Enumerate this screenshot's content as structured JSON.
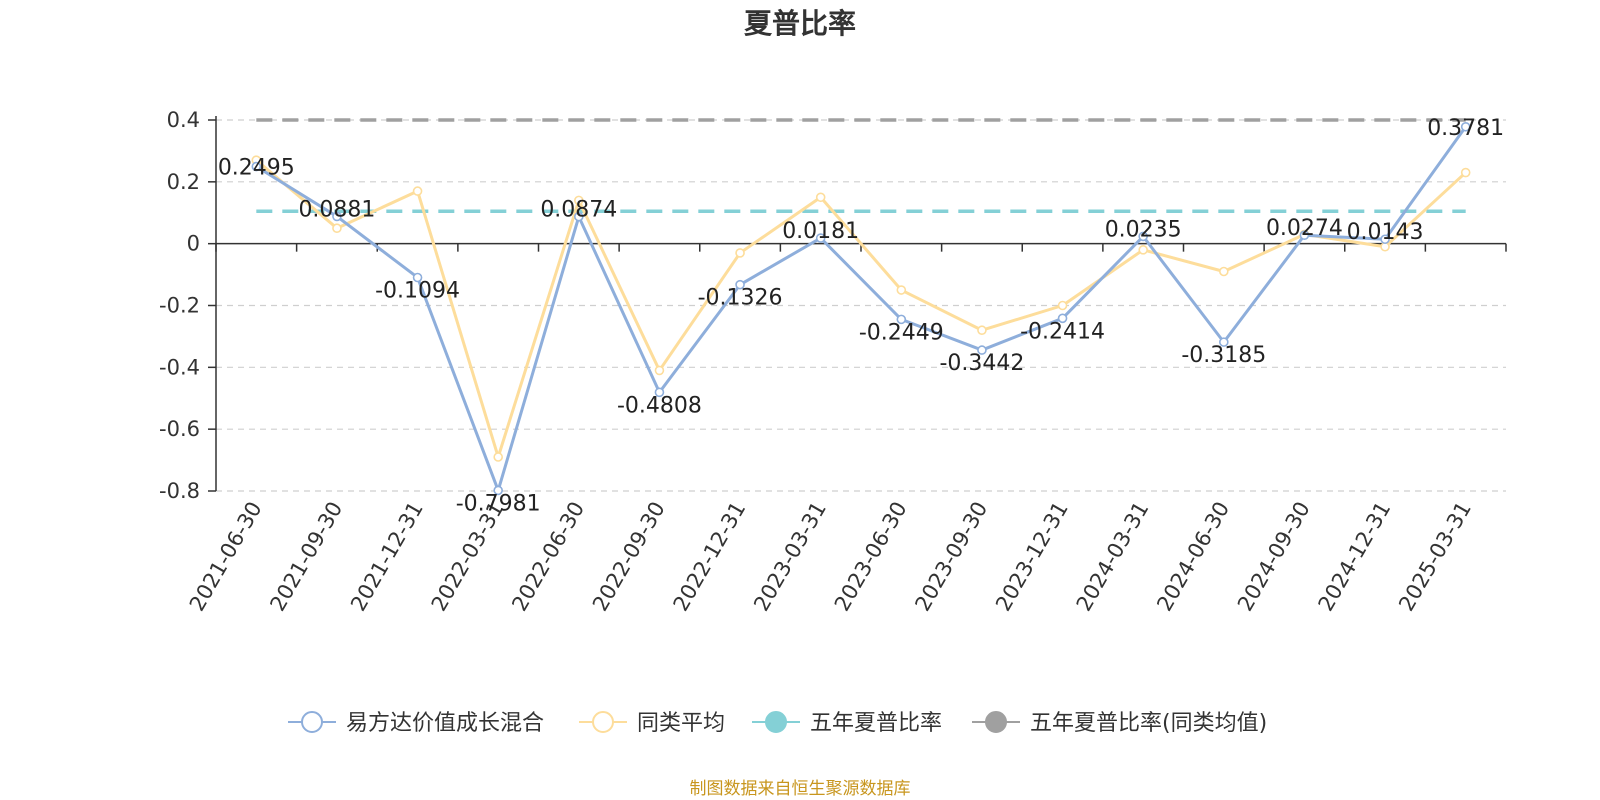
{
  "chart_data": {
    "type": "line",
    "title": "夏普比率",
    "categories": [
      "2021-06-30",
      "2021-09-30",
      "2021-12-31",
      "2022-03-31",
      "2022-06-30",
      "2022-09-30",
      "2022-12-31",
      "2023-03-31",
      "2023-06-30",
      "2023-09-30",
      "2023-12-31",
      "2024-03-31",
      "2024-06-30",
      "2024-09-30",
      "2024-12-31",
      "2025-03-31"
    ],
    "series": [
      {
        "name": "易方达价值成长混合",
        "color": "#8eaedb",
        "values": [
          0.2495,
          0.0881,
          -0.1094,
          -0.7981,
          0.0874,
          -0.4808,
          -0.1326,
          0.0181,
          -0.2449,
          -0.3442,
          -0.2414,
          0.0235,
          -0.3185,
          0.0274,
          0.0143,
          0.3781
        ],
        "labels": [
          "0.2495",
          "0.0881",
          "-0.1094",
          "-0.7981",
          "0.0874",
          "-0.4808",
          "-0.1326",
          "0.0181",
          "-0.2449",
          "-0.3442",
          "-0.2414",
          "0.0235",
          "-0.3185",
          "0.0274",
          "0.0143",
          "0.3781"
        ]
      },
      {
        "name": "同类平均",
        "color": "#fddd9b",
        "values": [
          0.27,
          0.05,
          0.17,
          -0.69,
          0.14,
          -0.41,
          -0.03,
          0.15,
          -0.15,
          -0.28,
          -0.2,
          -0.02,
          -0.09,
          0.03,
          -0.01,
          0.23
        ]
      },
      {
        "name": "五年夏普比率",
        "color": "#84d0d6",
        "constant": 0.105,
        "dashed": true
      },
      {
        "name": "五年夏普比率(同类均值)",
        "color": "#a0a0a0",
        "constant": 0.4,
        "dashed": true
      }
    ],
    "yticks": [
      "0.4",
      "0.2",
      "0",
      "-0.2",
      "-0.4",
      "-0.6",
      "-0.8"
    ],
    "ytick_values": [
      0.4,
      0.2,
      0,
      -0.2,
      -0.4,
      -0.6,
      -0.8
    ],
    "ylim": [
      -0.8,
      0.4
    ],
    "grid": true,
    "legend_position": "bottom"
  },
  "source": "制图数据来自恒生聚源数据库"
}
